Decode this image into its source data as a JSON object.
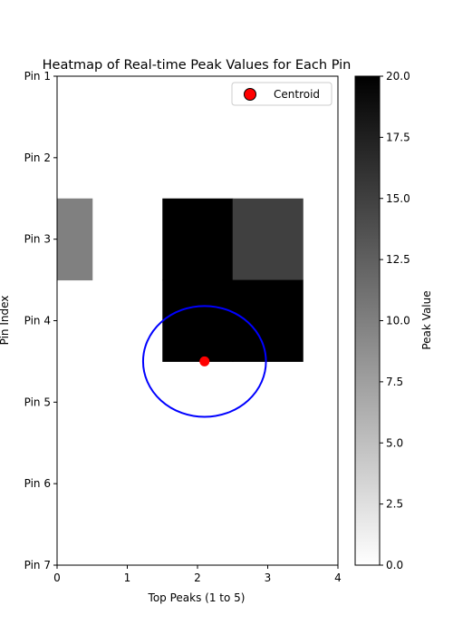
{
  "chart_data": {
    "type": "heatmap",
    "title": "Heatmap of Real-time Peak Values for Each Pin",
    "xlabel": "Top Peaks (1 to 5)",
    "ylabel": "Pin Index",
    "xlim": [
      0,
      4
    ],
    "ylim": [
      0,
      6
    ],
    "x_ticks": [
      0,
      1,
      2,
      3,
      4
    ],
    "y_tick_labels": [
      "Pin 1",
      "Pin 2",
      "Pin 3",
      "Pin 4",
      "Pin 5",
      "Pin 6",
      "Pin 7"
    ],
    "grid": false,
    "colormap": "gray_r",
    "colorbar": {
      "label": "Peak Value",
      "min": 0,
      "max": 20,
      "ticks": [
        "0.0",
        "2.5",
        "5.0",
        "7.5",
        "10.0",
        "12.5",
        "15.0",
        "17.5",
        "20.0"
      ]
    },
    "cells": [
      {
        "x": 0,
        "pin": "Pin 3",
        "value": 10
      },
      {
        "x": 2,
        "pin": "Pin 3",
        "value": 20
      },
      {
        "x": 3,
        "pin": "Pin 3",
        "value": 15
      },
      {
        "x": 2,
        "pin": "Pin 4",
        "value": 20
      },
      {
        "x": 3,
        "pin": "Pin 4",
        "value": 20
      }
    ],
    "centroid": {
      "x": 2.1,
      "y": 3.5,
      "label": "Centroid",
      "color": "#ff0000"
    },
    "ellipse": {
      "cx": 2.1,
      "cy": 3.5,
      "width": 1.75,
      "height": 1.36,
      "color": "#0000ff"
    },
    "legend": {
      "placement": "top-right",
      "entries": [
        "Centroid"
      ]
    }
  }
}
